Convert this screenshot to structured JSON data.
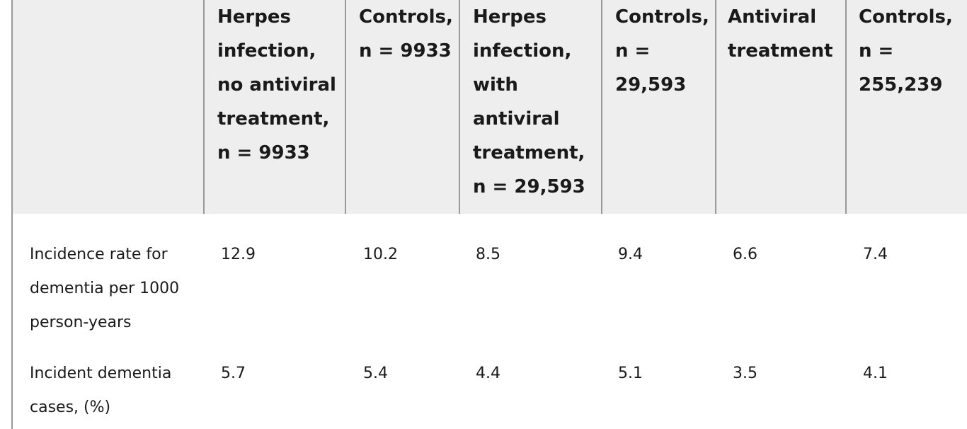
{
  "table": {
    "headers": [
      "",
      "Herpes infection, no antiviral treatment, n = 9933",
      "Controls, n = 9933",
      "Herpes infection, with antiviral treatment, n = 29,593",
      "Controls, n = 29,593",
      "Antiviral treatment",
      "Controls, n = 255,239"
    ],
    "header_lines": [
      [],
      [
        "Herpes",
        "infection,",
        "no antiviral",
        "treatment,",
        "n = 9933"
      ],
      [
        "Controls,",
        "n = 9933"
      ],
      [
        "Herpes",
        "infection,",
        "with",
        "antiviral",
        "treatment,",
        "n = 29,593"
      ],
      [
        "Controls,",
        "n =",
        "29,593"
      ],
      [
        "Antiviral",
        "treatment"
      ],
      [
        "Controls,",
        "n =",
        "255,239"
      ]
    ],
    "rows": [
      {
        "label_lines": [
          "Incidence rate for",
          "dementia per 1000",
          "person-years"
        ],
        "values": [
          "12.9",
          "10.2",
          "8.5",
          "9.4",
          "6.6",
          "7.4"
        ]
      },
      {
        "label_lines": [
          "Incident dementia",
          "cases, (%)"
        ],
        "values": [
          "5.7",
          "5.4",
          "4.4",
          "5.1",
          "3.5",
          "4.1"
        ]
      }
    ]
  }
}
